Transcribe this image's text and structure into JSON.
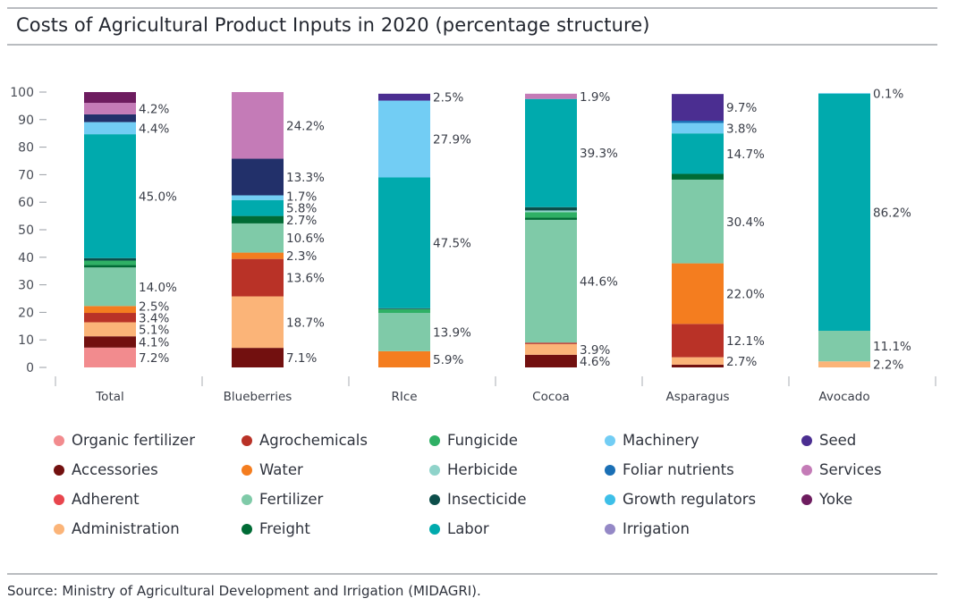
{
  "title": "Costs of Agricultural Product Inputs in 2020 (percentage structure)",
  "source": "Source: Ministry of Agricultural Development and Irrigation (MIDAGRI).",
  "chart_data": {
    "type": "bar",
    "stacked": true,
    "title": "Costs of Agricultural Product Inputs in 2020 (percentage structure)",
    "xlabel": "",
    "ylabel": "",
    "ylim": [
      0,
      100
    ],
    "yticks": [
      0,
      10,
      20,
      30,
      40,
      50,
      60,
      70,
      80,
      90,
      100
    ],
    "grid": false,
    "legend_position": "bottom",
    "categories": [
      "Total",
      "Blueberries",
      "RIce",
      "Cocoa",
      "Asparagus",
      "Avocado"
    ],
    "legend": [
      {
        "name": "Organic fertilizer",
        "color": "#f28b8e"
      },
      {
        "name": "Agrochemicals",
        "color": "#b93227"
      },
      {
        "name": "Fungicide",
        "color": "#2fb065"
      },
      {
        "name": "Machinery",
        "color": "#72cdf4"
      },
      {
        "name": "Seed",
        "color": "#4b2e91"
      },
      {
        "name": "Accessories",
        "color": "#72100f"
      },
      {
        "name": "Water",
        "color": "#f47d1f"
      },
      {
        "name": "Herbicide",
        "color": "#8fd3ca"
      },
      {
        "name": "Foliar nutrients",
        "color": "#1a6fb5"
      },
      {
        "name": "Services",
        "color": "#c47bb7"
      },
      {
        "name": "Adherent",
        "color": "#e8454d"
      },
      {
        "name": "Fertilizer",
        "color": "#7fcaa8"
      },
      {
        "name": "Insecticide",
        "color": "#0c4e4a"
      },
      {
        "name": "Growth regulators",
        "color": "#3dbfe8"
      },
      {
        "name": "Yoke",
        "color": "#6d1c5f"
      },
      {
        "name": "Administration",
        "color": "#fbb478"
      },
      {
        "name": "Freight",
        "color": "#006b35"
      },
      {
        "name": "Labor",
        "color": "#00aaad"
      },
      {
        "name": "Irrigation",
        "color": "#9488c6"
      }
    ],
    "bars": [
      {
        "category": "Total",
        "segments": [
          {
            "series": "Organic fertilizer",
            "value": 7.2,
            "label": "7.2%"
          },
          {
            "series": "Accessories",
            "value": 4.1,
            "label": "4.1%"
          },
          {
            "series": "Administration",
            "value": 5.1,
            "label": "5.1%"
          },
          {
            "series": "Agrochemicals",
            "value": 3.4,
            "label": "3.4%"
          },
          {
            "series": "Water",
            "value": 2.5,
            "label": "2.5%"
          },
          {
            "series": "Fertilizer",
            "value": 14.0,
            "label": "14.0%"
          },
          {
            "series": "Freight",
            "value": 0.9,
            "label": ""
          },
          {
            "series": "Fungicide",
            "value": 1.6,
            "label": ""
          },
          {
            "series": "Insecticide",
            "value": 0.9,
            "label": ""
          },
          {
            "series": "Labor",
            "value": 45.0,
            "label": "45.0%"
          },
          {
            "series": "Machinery",
            "value": 4.4,
            "label": "4.4%"
          },
          {
            "series": "Unlisted (navy)",
            "value": 2.8,
            "label": "",
            "color": "#22306a"
          },
          {
            "series": "Services",
            "value": 4.2,
            "label": "4.2%"
          },
          {
            "series": "Yoke",
            "value": 3.9,
            "label": ""
          }
        ]
      },
      {
        "category": "Blueberries",
        "segments": [
          {
            "series": "Accessories",
            "value": 7.1,
            "label": "7.1%"
          },
          {
            "series": "Administration",
            "value": 18.7,
            "label": "18.7%"
          },
          {
            "series": "Agrochemicals",
            "value": 13.6,
            "label": "13.6%"
          },
          {
            "series": "Water",
            "value": 2.3,
            "label": "2.3%"
          },
          {
            "series": "Fertilizer",
            "value": 10.6,
            "label": "10.6%"
          },
          {
            "series": "Freight",
            "value": 2.7,
            "label": "2.7%"
          },
          {
            "series": "Labor",
            "value": 5.8,
            "label": "5.8%"
          },
          {
            "series": "Machinery",
            "value": 1.7,
            "label": "1.7%"
          },
          {
            "series": "Unlisted (navy)",
            "value": 13.3,
            "label": "13.3%",
            "color": "#22306a"
          },
          {
            "series": "Services",
            "value": 24.2,
            "label": "24.2%"
          }
        ]
      },
      {
        "category": "RIce",
        "segments": [
          {
            "series": "Water",
            "value": 5.9,
            "label": "5.9%"
          },
          {
            "series": "Fertilizer",
            "value": 13.9,
            "label": "13.9%"
          },
          {
            "series": "Fungicide",
            "value": 1.4,
            "label": ""
          },
          {
            "series": "Insecticide",
            "value": 0.3,
            "label": ""
          },
          {
            "series": "Labor",
            "value": 47.5,
            "label": "47.5%"
          },
          {
            "series": "Machinery",
            "value": 27.9,
            "label": "27.9%"
          },
          {
            "series": "Seed",
            "value": 2.5,
            "label": "2.5%"
          }
        ]
      },
      {
        "category": "Cocoa",
        "segments": [
          {
            "series": "Accessories",
            "value": 4.6,
            "label": "4.6%"
          },
          {
            "series": "Administration",
            "value": 3.9,
            "label": "3.9%"
          },
          {
            "series": "Agrochemicals",
            "value": 0.5,
            "label": ""
          },
          {
            "series": "Fertilizer",
            "value": 44.6,
            "label": "44.6%"
          },
          {
            "series": "Freight",
            "value": 0.8,
            "label": ""
          },
          {
            "series": "Fungicide",
            "value": 2.0,
            "label": ""
          },
          {
            "series": "Herbicide",
            "value": 0.6,
            "label": ""
          },
          {
            "series": "Insecticide",
            "value": 1.2,
            "label": ""
          },
          {
            "series": "Labor",
            "value": 39.3,
            "label": "39.3%"
          },
          {
            "series": "Services",
            "value": 1.9,
            "label": "1.9%"
          }
        ]
      },
      {
        "category": "Asparagus",
        "segments": [
          {
            "series": "Accessories",
            "value": 1.0,
            "label": ""
          },
          {
            "series": "Administration",
            "value": 2.7,
            "label": "2.7%"
          },
          {
            "series": "Agrochemicals",
            "value": 12.1,
            "label": "12.1%"
          },
          {
            "series": "Water",
            "value": 22.0,
            "label": "22.0%"
          },
          {
            "series": "Fertilizer",
            "value": 30.4,
            "label": "30.4%"
          },
          {
            "series": "Freight",
            "value": 2.1,
            "label": ""
          },
          {
            "series": "Labor",
            "value": 14.7,
            "label": "14.7%"
          },
          {
            "series": "Machinery",
            "value": 3.8,
            "label": "3.8%"
          },
          {
            "series": "Foliar nutrients",
            "value": 0.8,
            "label": ""
          },
          {
            "series": "Seed",
            "value": 9.7,
            "label": "9.7%"
          }
        ]
      },
      {
        "category": "Avocado",
        "segments": [
          {
            "series": "Administration",
            "value": 2.2,
            "label": "2.2%"
          },
          {
            "series": "Fertilizer",
            "value": 11.1,
            "label": "11.1%"
          },
          {
            "series": "Labor",
            "value": 86.2,
            "label": "86.2%"
          },
          {
            "series": "Machinery",
            "value": 0.1,
            "label": "0.1%"
          }
        ]
      }
    ]
  }
}
